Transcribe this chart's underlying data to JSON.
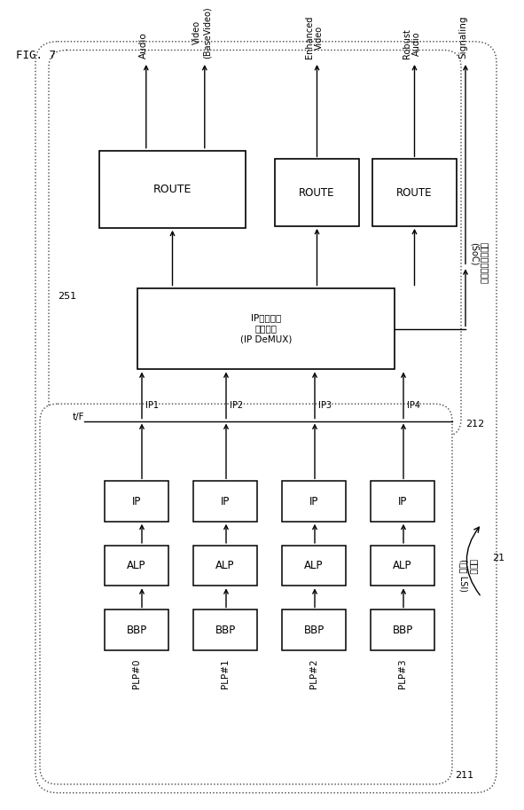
{
  "fig_label": "FIG. 7",
  "bg_color": "#ffffff",
  "text_color": "#000000",
  "plp_labels": [
    "PLP#0",
    "PLP#1",
    "PLP#2",
    "PLP#3"
  ],
  "ip_labels": [
    "IP1",
    "IP2",
    "IP3",
    "IP4"
  ],
  "bbp_label": "BBP",
  "alp_label": "ALP",
  "ip_label": "IP",
  "route_label": "ROUTE",
  "tf_label": "t/F",
  "label_251": "251",
  "label_212": "212",
  "label_211": "211",
  "label_21": "21",
  "demux_label_jp": "IPデマルチ\nプレクサ\n(IP DeMUX)",
  "soc_label_jp": "デマルチプレクサ\n(SoC)",
  "fukucho_label_jp": "復調部\n(復調 LSI)",
  "out_labels": [
    "Audio",
    "Video\n(BaseVideo)",
    "Enhanced\nVideo",
    "Robust\nAudio",
    "Signaling"
  ],
  "outer_box_color": "#444444",
  "inner_box_color": "#444444"
}
